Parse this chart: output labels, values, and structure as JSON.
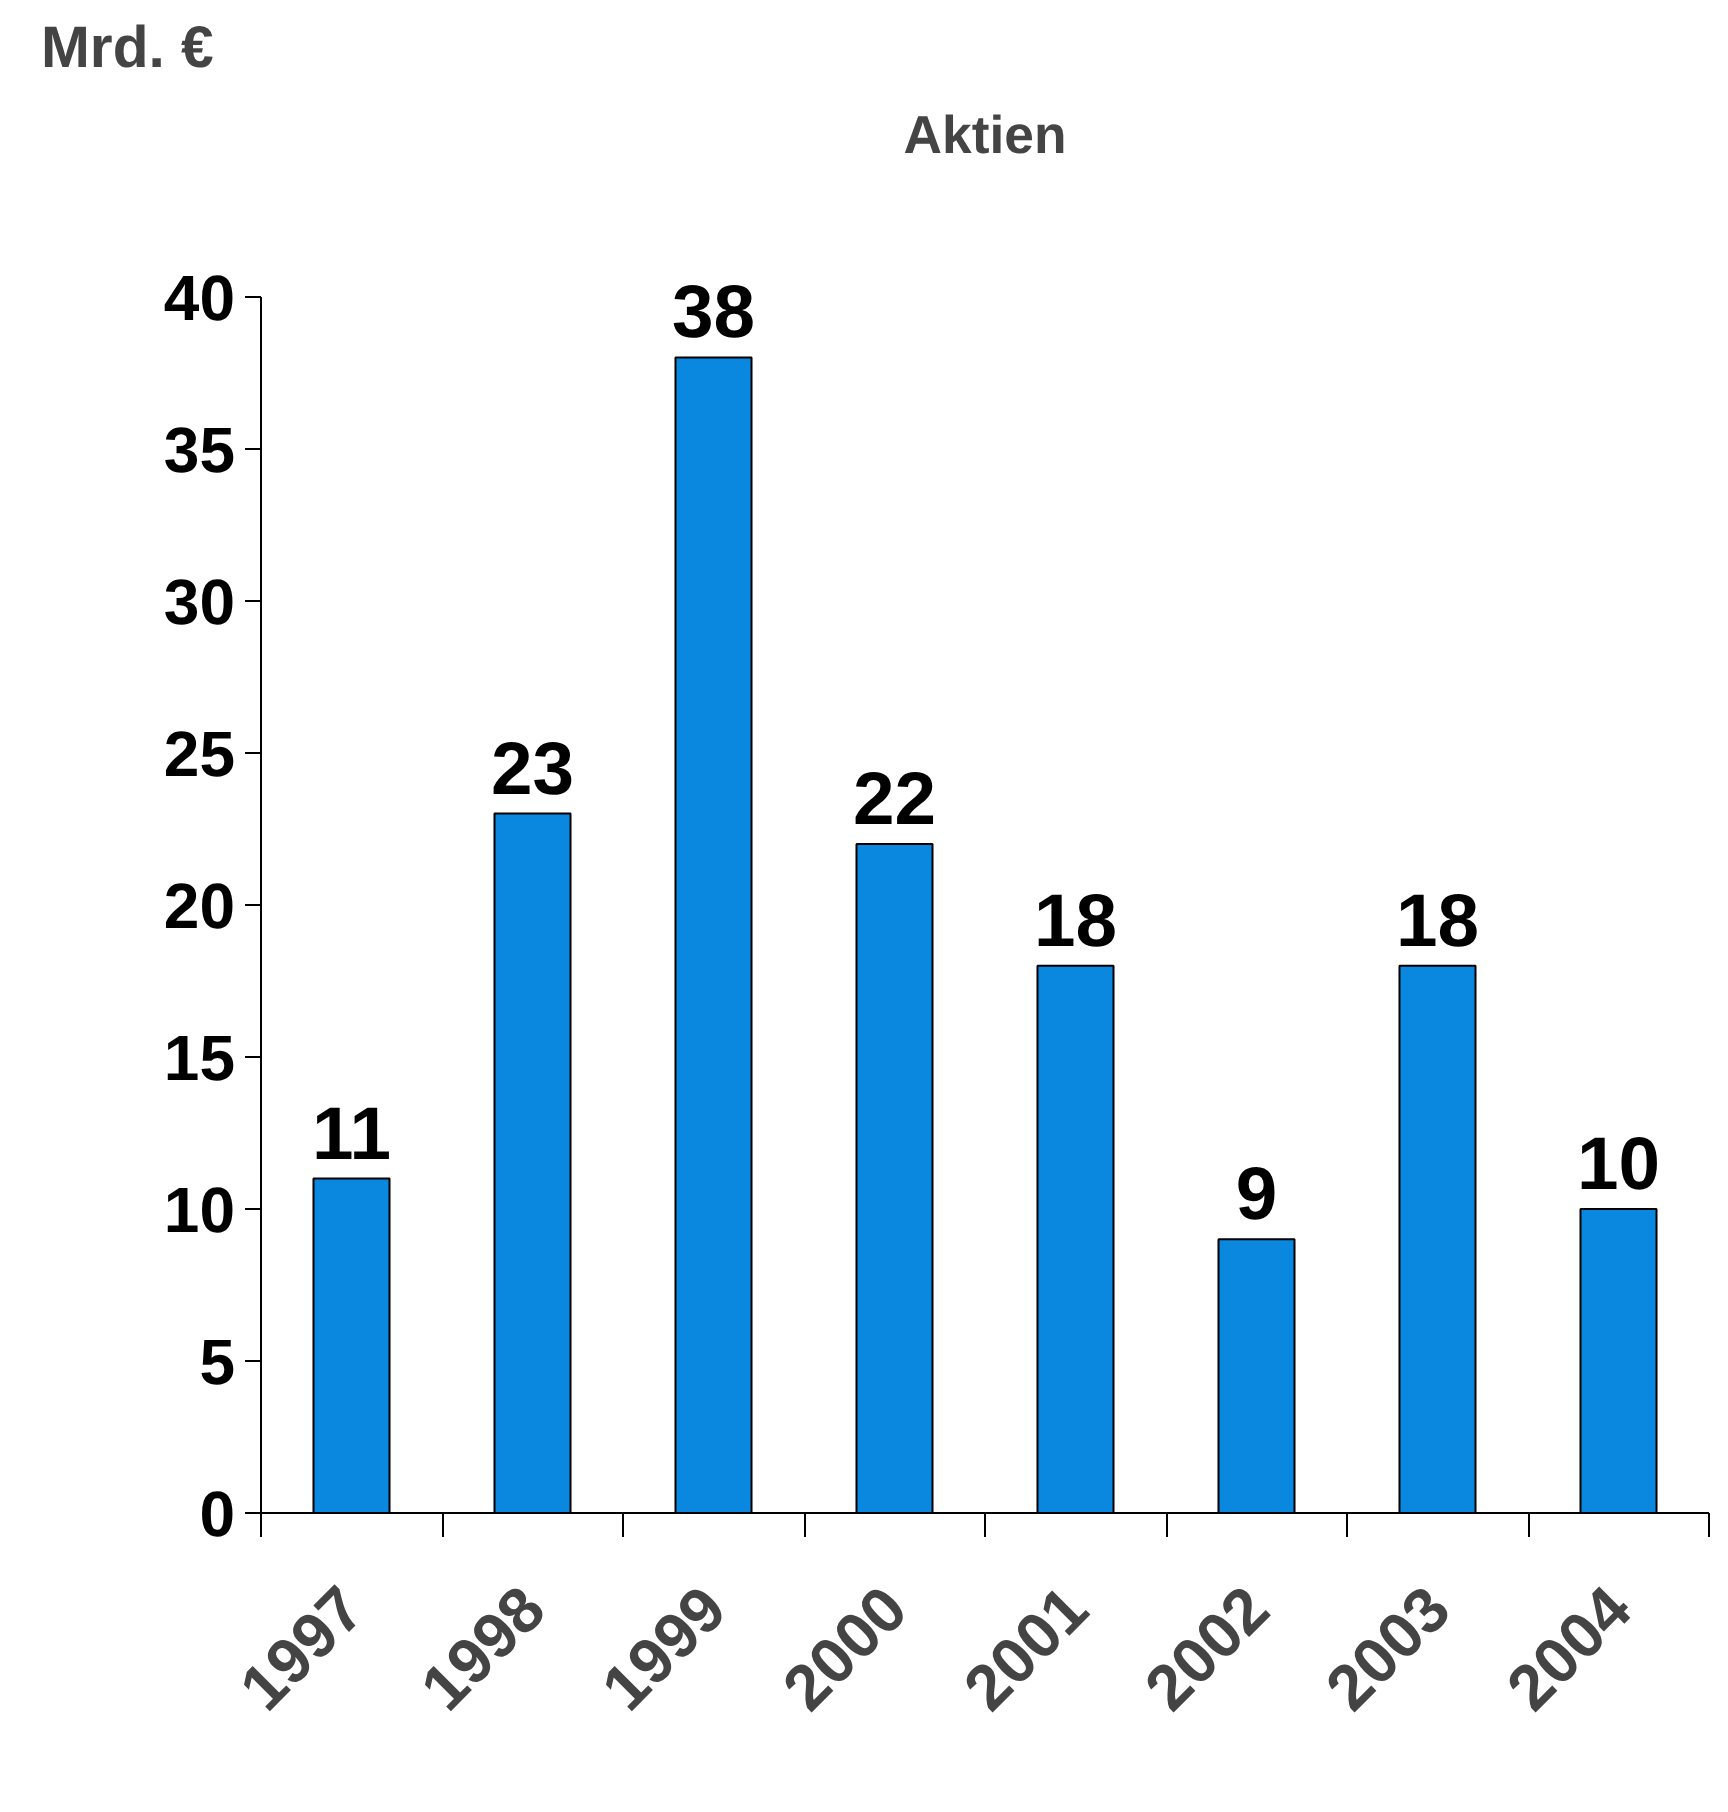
{
  "chart_data": {
    "type": "bar",
    "title": "Aktien",
    "ylabel": "Mrd. €",
    "categories": [
      "1997",
      "1998",
      "1999",
      "2000",
      "2001",
      "2002",
      "2003",
      "2004"
    ],
    "values": [
      11,
      23,
      38,
      22,
      18,
      9,
      18,
      10
    ],
    "color": "#0a88e0",
    "ylim": [
      0,
      40
    ],
    "yticks": [
      0,
      5,
      10,
      15,
      20,
      25,
      30,
      35,
      40
    ],
    "data_labels": true,
    "grid": false
  }
}
